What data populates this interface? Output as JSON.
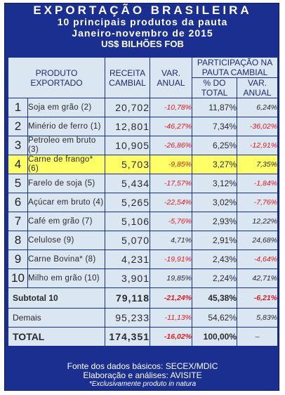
{
  "title": {
    "line1": "EXPORTAÇÃO BRASILEIRA",
    "line2": "10 principais produtos da pauta",
    "line3": "Janeiro-novembro de 2015",
    "line4": "US$ BILHÕES FOB"
  },
  "headers": {
    "produto": "PRODUTO EXPORTADO",
    "receita": "RECEITA CAMBIAL",
    "var_anual": "VAR. ANUAL",
    "participacao": "PARTICIPAÇÃO NA PAUTA CAMBIAL",
    "pct_total": "% DO TOTAL",
    "var_anual_part": "VAR. ANUAL"
  },
  "rows": [
    {
      "rank": "1",
      "produto": "Soja em grão (2)",
      "receita": "20,702",
      "var": "-10,78%",
      "pct": "11,87%",
      "var_part": "6,24%"
    },
    {
      "rank": "2",
      "produto": "Minério de ferro (1)",
      "receita": "12,801",
      "var": "-46,27%",
      "pct": "7,34%",
      "var_part": "-36,02%"
    },
    {
      "rank": "3",
      "produto": "Petroleo em bruto (3)",
      "receita": "10,905",
      "var": "-26,86%",
      "pct": "6,25%",
      "var_part": "-12,91%"
    },
    {
      "rank": "4",
      "produto": "Carne de frango* (6)",
      "receita": "5,703",
      "var": "-9,85%",
      "pct": "3,27%",
      "var_part": "7,35%"
    },
    {
      "rank": "5",
      "produto": "Farelo de soja (5)",
      "receita": "5,434",
      "var": "-17,57%",
      "pct": "3,12%",
      "var_part": "-1,84%"
    },
    {
      "rank": "6",
      "produto": "Açúcar em bruto (4)",
      "receita": "5,265",
      "var": "-22,54%",
      "pct": "3,02%",
      "var_part": "-7,76%"
    },
    {
      "rank": "7",
      "produto": "Café em grão (7)",
      "receita": "5,106",
      "var": "-5,76%",
      "pct": "2,93%",
      "var_part": "12,22%"
    },
    {
      "rank": "8",
      "produto": "Celulose (9)",
      "receita": "5,070",
      "var": "4,71%",
      "pct": "2,91%",
      "var_part": "24,68%"
    },
    {
      "rank": "9",
      "produto": "Carne Bovina* (8)",
      "receita": "4,231",
      "var": "-19,91%",
      "pct": "2,43%",
      "var_part": "-4,64%"
    },
    {
      "rank": "10",
      "produto": "Milho em grão (10)",
      "receita": "3,901",
      "var": "19,85%",
      "pct": "2,24%",
      "var_part": "42,71%"
    }
  ],
  "subtotal": {
    "label": "Subtotal 10",
    "receita": "79,118",
    "var": "-21,24%",
    "pct": "45,38%",
    "var_part": "-6,21%"
  },
  "demais": {
    "label": "Demais",
    "receita": "95,233",
    "var": "-11,13%",
    "pct": "54,62%",
    "var_part": "5,83%"
  },
  "total": {
    "label": "TOTAL",
    "receita": "174,351",
    "var": "-16,02%",
    "pct": "100,00%",
    "var_part": "–"
  },
  "footer": {
    "line1": "Fonte dos dados básicos: SECEX/MDIC",
    "line2": "Elaboração e análises: AVISITE",
    "line3": "*Exclusivamente produto in natura"
  },
  "colors": {
    "background": "#1a2f8f",
    "cell": "#dbe6f3",
    "highlight": "#ffff66",
    "negative": "#e0191b"
  }
}
